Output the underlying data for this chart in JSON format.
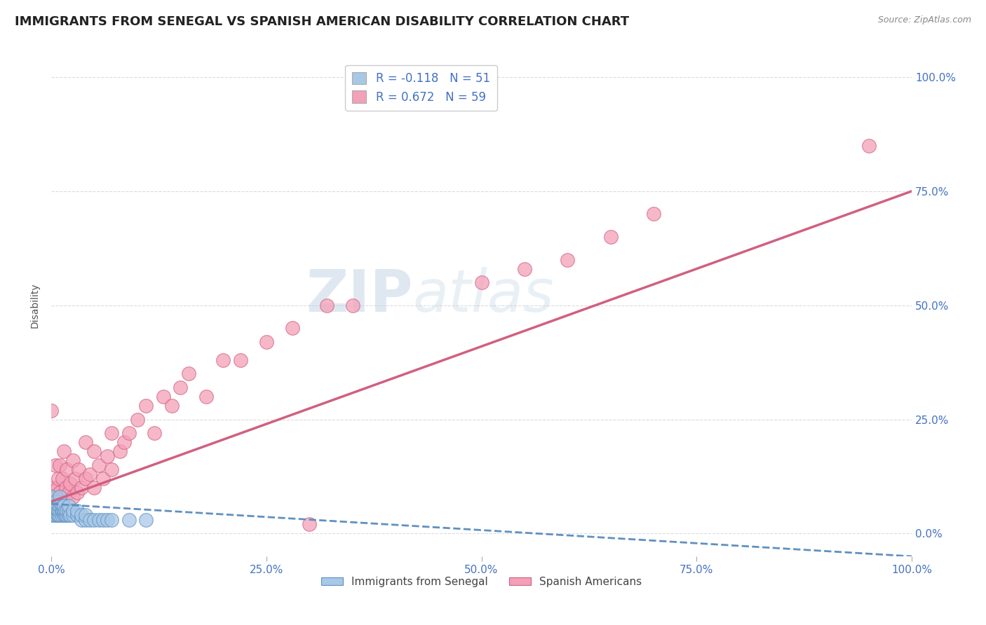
{
  "title": "IMMIGRANTS FROM SENEGAL VS SPANISH AMERICAN DISABILITY CORRELATION CHART",
  "source": "Source: ZipAtlas.com",
  "ylabel": "Disability",
  "watermark_zip": "ZIP",
  "watermark_atlas": "atlas",
  "series1_label": "Immigrants from Senegal",
  "series2_label": "Spanish Americans",
  "series1_R": -0.118,
  "series1_N": 51,
  "series2_R": 0.672,
  "series2_N": 59,
  "series1_color": "#A8C8E8",
  "series2_color": "#F4A0B8",
  "series1_edge_color": "#6090C0",
  "series2_edge_color": "#D06080",
  "series1_trend_color": "#6090C0",
  "series2_trend_color": "#D06080",
  "background_color": "#FFFFFF",
  "xlim": [
    0.0,
    1.0
  ],
  "ylim": [
    -0.05,
    1.05
  ],
  "series1_x": [
    0.0,
    0.0,
    0.0,
    0.0,
    0.0,
    0.003,
    0.003,
    0.005,
    0.005,
    0.005,
    0.007,
    0.007,
    0.007,
    0.008,
    0.008,
    0.01,
    0.01,
    0.01,
    0.01,
    0.01,
    0.012,
    0.012,
    0.013,
    0.013,
    0.015,
    0.015,
    0.015,
    0.016,
    0.016,
    0.018,
    0.018,
    0.02,
    0.02,
    0.02,
    0.022,
    0.025,
    0.025,
    0.03,
    0.03,
    0.035,
    0.035,
    0.04,
    0.04,
    0.045,
    0.05,
    0.055,
    0.06,
    0.065,
    0.07,
    0.09,
    0.11
  ],
  "series1_y": [
    0.04,
    0.05,
    0.06,
    0.07,
    0.08,
    0.04,
    0.06,
    0.04,
    0.05,
    0.07,
    0.04,
    0.05,
    0.06,
    0.04,
    0.05,
    0.04,
    0.05,
    0.06,
    0.07,
    0.08,
    0.04,
    0.05,
    0.05,
    0.06,
    0.04,
    0.05,
    0.06,
    0.04,
    0.05,
    0.04,
    0.05,
    0.04,
    0.05,
    0.06,
    0.04,
    0.04,
    0.05,
    0.04,
    0.05,
    0.03,
    0.04,
    0.03,
    0.04,
    0.03,
    0.03,
    0.03,
    0.03,
    0.03,
    0.03,
    0.03,
    0.03
  ],
  "series2_x": [
    0.0,
    0.0,
    0.002,
    0.003,
    0.005,
    0.005,
    0.007,
    0.008,
    0.01,
    0.01,
    0.01,
    0.012,
    0.013,
    0.015,
    0.015,
    0.017,
    0.018,
    0.02,
    0.022,
    0.025,
    0.025,
    0.028,
    0.03,
    0.032,
    0.035,
    0.04,
    0.04,
    0.045,
    0.05,
    0.05,
    0.055,
    0.06,
    0.065,
    0.07,
    0.07,
    0.08,
    0.085,
    0.09,
    0.1,
    0.11,
    0.12,
    0.13,
    0.14,
    0.15,
    0.16,
    0.18,
    0.2,
    0.22,
    0.25,
    0.28,
    0.32,
    0.35,
    0.5,
    0.55,
    0.6,
    0.65,
    0.7,
    0.95,
    0.3
  ],
  "series2_y": [
    0.07,
    0.27,
    0.1,
    0.06,
    0.08,
    0.15,
    0.1,
    0.12,
    0.06,
    0.09,
    0.15,
    0.07,
    0.12,
    0.08,
    0.18,
    0.1,
    0.14,
    0.09,
    0.11,
    0.08,
    0.16,
    0.12,
    0.09,
    0.14,
    0.1,
    0.12,
    0.2,
    0.13,
    0.1,
    0.18,
    0.15,
    0.12,
    0.17,
    0.14,
    0.22,
    0.18,
    0.2,
    0.22,
    0.25,
    0.28,
    0.22,
    0.3,
    0.28,
    0.32,
    0.35,
    0.3,
    0.38,
    0.38,
    0.42,
    0.45,
    0.5,
    0.5,
    0.55,
    0.58,
    0.6,
    0.65,
    0.7,
    0.85,
    0.02
  ],
  "trend2_x0": 0.0,
  "trend2_y0": 0.07,
  "trend2_x1": 1.0,
  "trend2_y1": 0.75,
  "trend1_x0": 0.0,
  "trend1_y0": 0.065,
  "trend1_x1": 1.0,
  "trend1_y1": -0.05
}
